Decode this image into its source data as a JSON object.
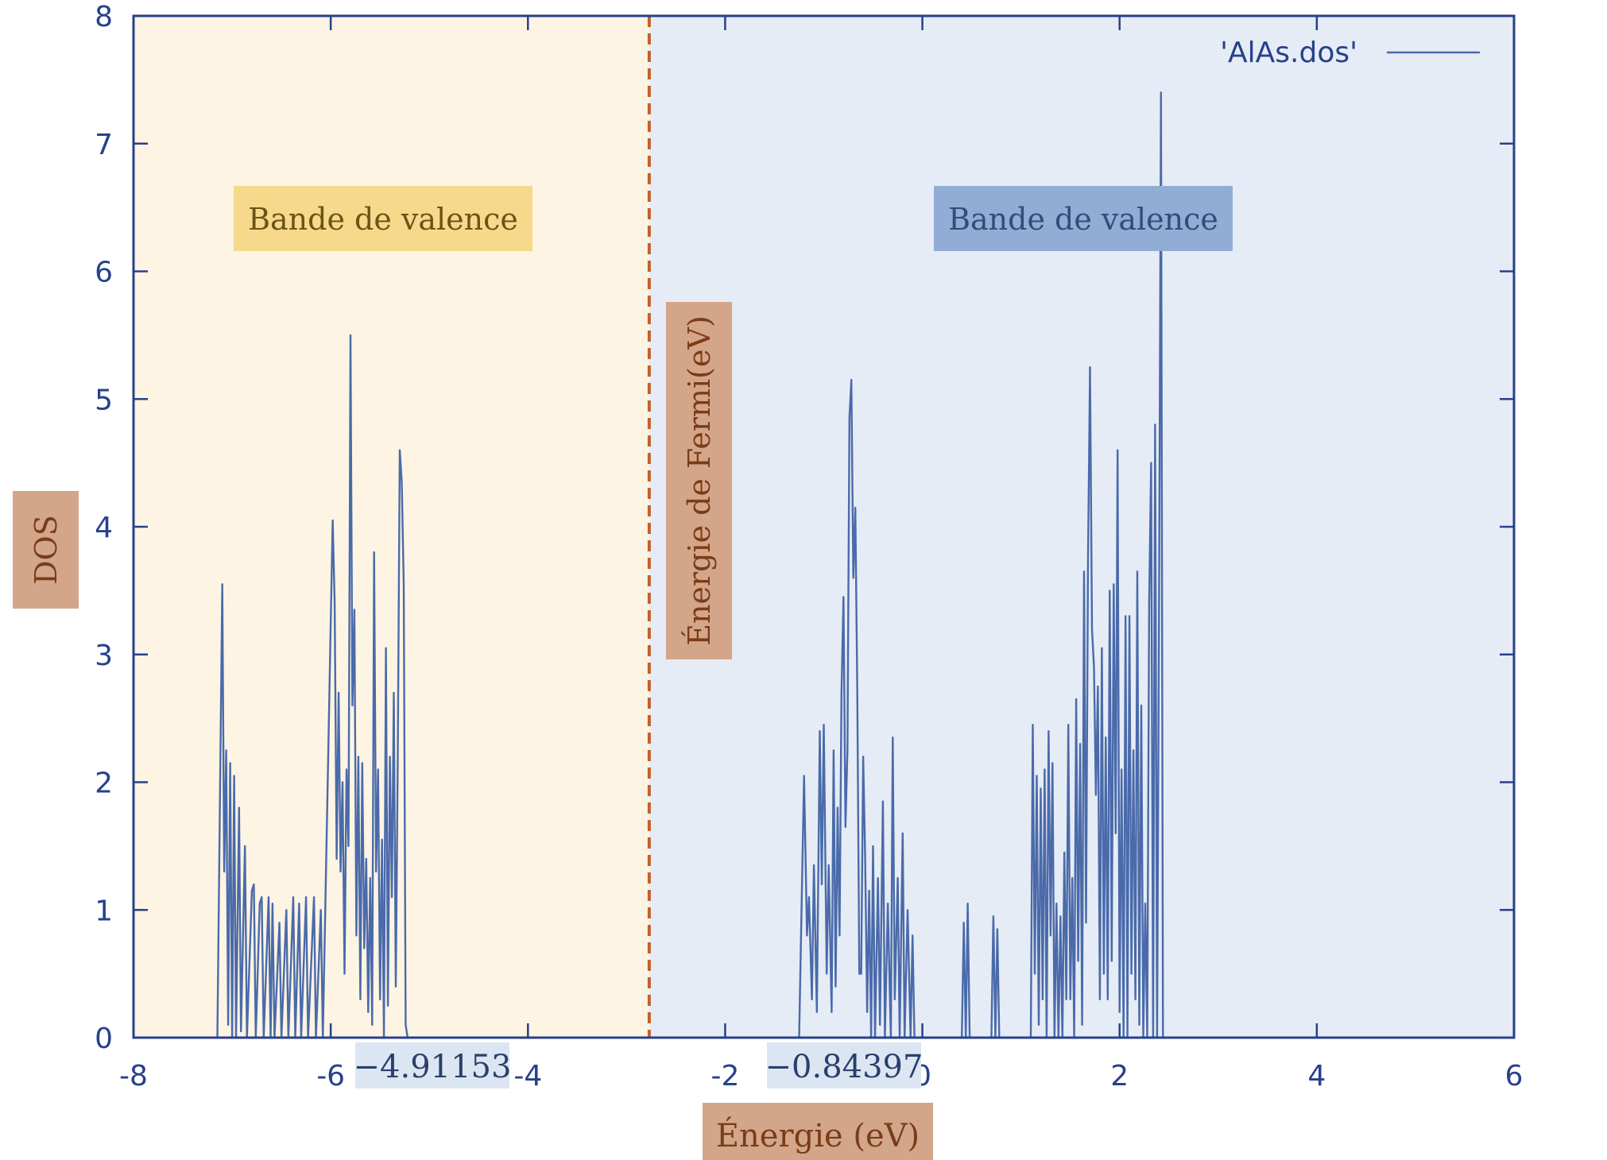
{
  "chart_data": {
    "type": "line",
    "title": "",
    "xlabel": "Énergie (eV)",
    "ylabel": "DOS",
    "xlim": [
      -8,
      6
    ],
    "ylim": [
      0,
      8
    ],
    "x_ticks": [
      -8,
      -6,
      -4,
      -2,
      0,
      2,
      4,
      6
    ],
    "y_ticks": [
      0,
      1,
      2,
      3,
      4,
      5,
      6,
      7,
      8
    ],
    "grid": false,
    "legend": {
      "position": "top-right",
      "entries": [
        "'AlAs.dos'"
      ]
    },
    "series": [
      {
        "name": "'AlAs.dos'",
        "color": "#4a6aaa",
        "points": [
          [
            -7.15,
            0
          ],
          [
            -7.1,
            3.55
          ],
          [
            -7.08,
            1.3
          ],
          [
            -7.06,
            2.25
          ],
          [
            -7.04,
            0.1
          ],
          [
            -7.02,
            2.15
          ],
          [
            -7.0,
            0.0
          ],
          [
            -6.98,
            2.05
          ],
          [
            -6.96,
            0.0
          ],
          [
            -6.93,
            1.8
          ],
          [
            -6.91,
            0.05
          ],
          [
            -6.87,
            1.5
          ],
          [
            -6.85,
            0.0
          ],
          [
            -6.8,
            1.15
          ],
          [
            -6.78,
            1.2
          ],
          [
            -6.76,
            0.0
          ],
          [
            -6.72,
            1.05
          ],
          [
            -6.7,
            1.1
          ],
          [
            -6.68,
            0.0
          ],
          [
            -6.63,
            1.1
          ],
          [
            -6.61,
            0.0
          ],
          [
            -6.59,
            1.05
          ],
          [
            -6.57,
            0.0
          ],
          [
            -6.52,
            0.9
          ],
          [
            -6.5,
            0.0
          ],
          [
            -6.45,
            1.0
          ],
          [
            -6.43,
            0.0
          ],
          [
            -6.38,
            1.1
          ],
          [
            -6.36,
            0.0
          ],
          [
            -6.32,
            1.05
          ],
          [
            -6.3,
            0.0
          ],
          [
            -6.25,
            1.1
          ],
          [
            -6.23,
            0.0
          ],
          [
            -6.17,
            1.1
          ],
          [
            -6.15,
            0.0
          ],
          [
            -6.1,
            1.0
          ],
          [
            -6.08,
            0.0
          ],
          [
            -5.98,
            4.05
          ],
          [
            -5.96,
            3.4
          ],
          [
            -5.94,
            1.4
          ],
          [
            -5.92,
            2.7
          ],
          [
            -5.9,
            1.3
          ],
          [
            -5.88,
            2.0
          ],
          [
            -5.86,
            0.5
          ],
          [
            -5.84,
            2.1
          ],
          [
            -5.82,
            1.5
          ],
          [
            -5.8,
            5.5
          ],
          [
            -5.78,
            2.6
          ],
          [
            -5.76,
            3.35
          ],
          [
            -5.74,
            0.8
          ],
          [
            -5.72,
            2.2
          ],
          [
            -5.7,
            0.3
          ],
          [
            -5.68,
            2.15
          ],
          [
            -5.66,
            0.7
          ],
          [
            -5.64,
            1.4
          ],
          [
            -5.62,
            0.2
          ],
          [
            -5.6,
            1.25
          ],
          [
            -5.58,
            0.1
          ],
          [
            -5.56,
            3.8
          ],
          [
            -5.54,
            1.3
          ],
          [
            -5.52,
            2.1
          ],
          [
            -5.5,
            0.3
          ],
          [
            -5.48,
            1.55
          ],
          [
            -5.46,
            0.0
          ],
          [
            -5.44,
            3.05
          ],
          [
            -5.42,
            0.25
          ],
          [
            -5.4,
            2.2
          ],
          [
            -5.38,
            1.1
          ],
          [
            -5.36,
            2.7
          ],
          [
            -5.34,
            0.4
          ],
          [
            -5.32,
            2.2
          ],
          [
            -5.3,
            4.6
          ],
          [
            -5.28,
            4.35
          ],
          [
            -5.26,
            3.55
          ],
          [
            -5.24,
            0.1
          ],
          [
            -5.22,
            0
          ],
          [
            -3.2,
            0
          ],
          [
            -1.25,
            0
          ],
          [
            -1.2,
            2.05
          ],
          [
            -1.17,
            0.8
          ],
          [
            -1.15,
            1.1
          ],
          [
            -1.12,
            0.3
          ],
          [
            -1.1,
            1.35
          ],
          [
            -1.07,
            0.2
          ],
          [
            -1.04,
            2.4
          ],
          [
            -1.02,
            1.2
          ],
          [
            -1.0,
            2.45
          ],
          [
            -0.97,
            0.5
          ],
          [
            -0.95,
            1.35
          ],
          [
            -0.92,
            0.2
          ],
          [
            -0.9,
            2.25
          ],
          [
            -0.88,
            0.4
          ],
          [
            -0.86,
            1.8
          ],
          [
            -0.84,
            0.8
          ],
          [
            -0.82,
            2.7
          ],
          [
            -0.8,
            3.45
          ],
          [
            -0.78,
            1.65
          ],
          [
            -0.76,
            2.25
          ],
          [
            -0.74,
            4.85
          ],
          [
            -0.72,
            5.15
          ],
          [
            -0.7,
            3.6
          ],
          [
            -0.68,
            4.15
          ],
          [
            -0.66,
            2.7
          ],
          [
            -0.64,
            0.5
          ],
          [
            -0.62,
            0.5
          ],
          [
            -0.6,
            2.2
          ],
          [
            -0.58,
            1.4
          ],
          [
            -0.56,
            0.2
          ],
          [
            -0.54,
            1.15
          ],
          [
            -0.52,
            0.0
          ],
          [
            -0.5,
            1.5
          ],
          [
            -0.48,
            0.0
          ],
          [
            -0.45,
            1.25
          ],
          [
            -0.43,
            0.1
          ],
          [
            -0.4,
            1.85
          ],
          [
            -0.38,
            0.0
          ],
          [
            -0.35,
            1.05
          ],
          [
            -0.32,
            0.0
          ],
          [
            -0.3,
            2.35
          ],
          [
            -0.28,
            0.3
          ],
          [
            -0.25,
            1.25
          ],
          [
            -0.23,
            0.0
          ],
          [
            -0.2,
            1.6
          ],
          [
            -0.18,
            0.0
          ],
          [
            -0.15,
            1.0
          ],
          [
            -0.12,
            0.0
          ],
          [
            -0.1,
            0.8
          ],
          [
            -0.08,
            0.0
          ],
          [
            -0.05,
            0
          ],
          [
            0.4,
            0
          ],
          [
            0.42,
            0.9
          ],
          [
            0.44,
            0.0
          ],
          [
            0.46,
            1.05
          ],
          [
            0.48,
            0.0
          ],
          [
            0.7,
            0
          ],
          [
            0.72,
            0.95
          ],
          [
            0.74,
            0.0
          ],
          [
            0.76,
            0.85
          ],
          [
            0.78,
            0.0
          ],
          [
            1.1,
            0
          ],
          [
            1.12,
            2.45
          ],
          [
            1.14,
            0.5
          ],
          [
            1.16,
            2.05
          ],
          [
            1.18,
            0.1
          ],
          [
            1.2,
            1.95
          ],
          [
            1.22,
            0.3
          ],
          [
            1.24,
            2.1
          ],
          [
            1.26,
            0.0
          ],
          [
            1.28,
            2.4
          ],
          [
            1.3,
            0.8
          ],
          [
            1.32,
            2.15
          ],
          [
            1.34,
            0.0
          ],
          [
            1.36,
            1.05
          ],
          [
            1.38,
            0.0
          ],
          [
            1.4,
            0.95
          ],
          [
            1.42,
            0.0
          ],
          [
            1.44,
            1.45
          ],
          [
            1.46,
            0.3
          ],
          [
            1.48,
            2.45
          ],
          [
            1.5,
            0.3
          ],
          [
            1.52,
            1.25
          ],
          [
            1.54,
            0.0
          ],
          [
            1.56,
            2.65
          ],
          [
            1.58,
            0.6
          ],
          [
            1.6,
            2.3
          ],
          [
            1.62,
            0.1
          ],
          [
            1.64,
            3.65
          ],
          [
            1.66,
            0.9
          ],
          [
            1.68,
            3.75
          ],
          [
            1.7,
            5.25
          ],
          [
            1.72,
            3.2
          ],
          [
            1.74,
            2.9
          ],
          [
            1.76,
            1.9
          ],
          [
            1.78,
            2.75
          ],
          [
            1.8,
            0.3
          ],
          [
            1.82,
            3.05
          ],
          [
            1.84,
            0.5
          ],
          [
            1.86,
            2.35
          ],
          [
            1.88,
            0.3
          ],
          [
            1.9,
            3.5
          ],
          [
            1.92,
            0.6
          ],
          [
            1.94,
            3.55
          ],
          [
            1.96,
            1.6
          ],
          [
            1.98,
            4.6
          ],
          [
            2.0,
            0.2
          ],
          [
            2.02,
            2.1
          ],
          [
            2.04,
            0.0
          ],
          [
            2.06,
            3.3
          ],
          [
            2.08,
            0.0
          ],
          [
            2.1,
            3.3
          ],
          [
            2.12,
            0.5
          ],
          [
            2.14,
            2.25
          ],
          [
            2.16,
            0.3
          ],
          [
            2.18,
            3.65
          ],
          [
            2.2,
            0.1
          ],
          [
            2.22,
            2.6
          ],
          [
            2.24,
            0.0
          ],
          [
            2.26,
            1.05
          ],
          [
            2.28,
            0.0
          ],
          [
            2.3,
            3.4
          ],
          [
            2.32,
            4.5
          ],
          [
            2.34,
            0.0
          ],
          [
            2.36,
            4.8
          ],
          [
            2.38,
            0.0
          ],
          [
            2.4,
            3.3
          ],
          [
            2.42,
            7.4
          ],
          [
            2.44,
            0.0
          ]
        ]
      }
    ],
    "vertical_line": {
      "x": -2.77,
      "label": "Énergie de Fermi(eV)",
      "color": "#c0612a",
      "style": "dashed"
    },
    "regions": [
      {
        "label": "Bande de valence",
        "x_from": -8,
        "x_to": -2.77,
        "color": "#fdf4e3",
        "label_bg": "#f6d98a",
        "label_color": "#6b5417"
      },
      {
        "label": "Bande de valence",
        "x_from": -2.77,
        "x_to": 6,
        "color": "#e6ecf5",
        "label_bg": "#91acd5",
        "label_color": "#2f4f7a"
      }
    ],
    "annotations": [
      "−4.91153",
      "−0.84397"
    ]
  }
}
